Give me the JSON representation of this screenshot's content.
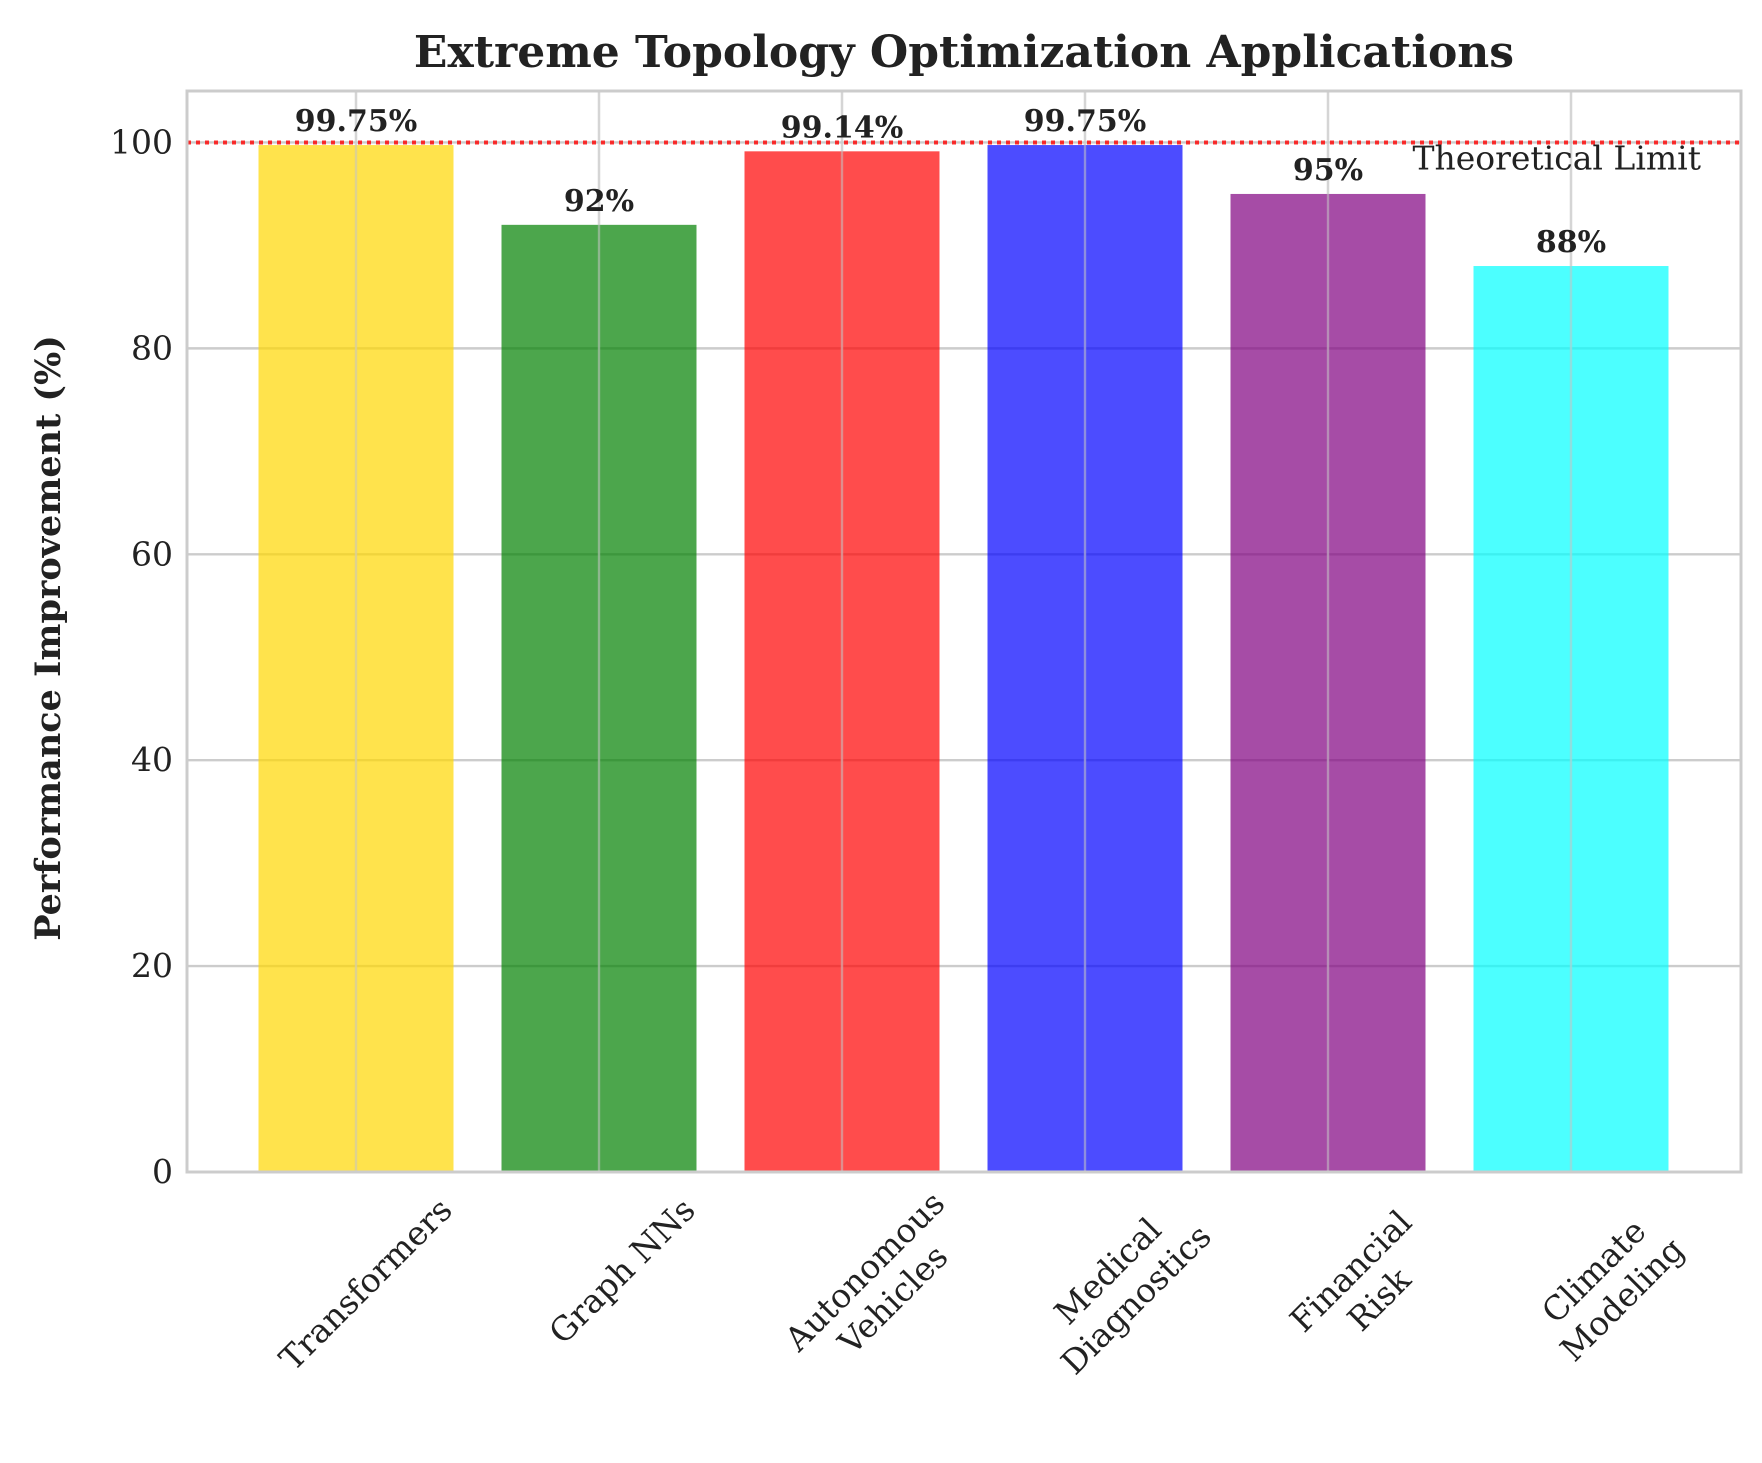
{
  "chart_data": {
    "type": "bar",
    "title": "Extreme Topology Optimization Applications",
    "xlabel": "",
    "ylabel": "Performance Improvement (%)",
    "ylim": [
      0,
      105
    ],
    "yticks": [
      0,
      20,
      40,
      60,
      80,
      100
    ],
    "grid": true,
    "categories": [
      [
        "Transformers"
      ],
      [
        "Graph NNs"
      ],
      [
        "Autonomous",
        "Vehicles"
      ],
      [
        "Medical",
        "Diagnostics"
      ],
      [
        "Financial",
        "Risk"
      ],
      [
        "Climate",
        "Modeling"
      ]
    ],
    "values": [
      99.75,
      92,
      99.14,
      99.75,
      95,
      88
    ],
    "value_labels": [
      "99.75%",
      "92%",
      "99.14%",
      "99.75%",
      "95%",
      "88%"
    ],
    "colors": [
      "#ffd700",
      "#008000",
      "#ff0000",
      "#0000ff",
      "#800080",
      "#00ffff"
    ],
    "bar_opacity": 0.7,
    "reference_line": {
      "value": 100,
      "label": "Theoretical Limit",
      "color": "#ff0000",
      "style": "dotted"
    }
  }
}
